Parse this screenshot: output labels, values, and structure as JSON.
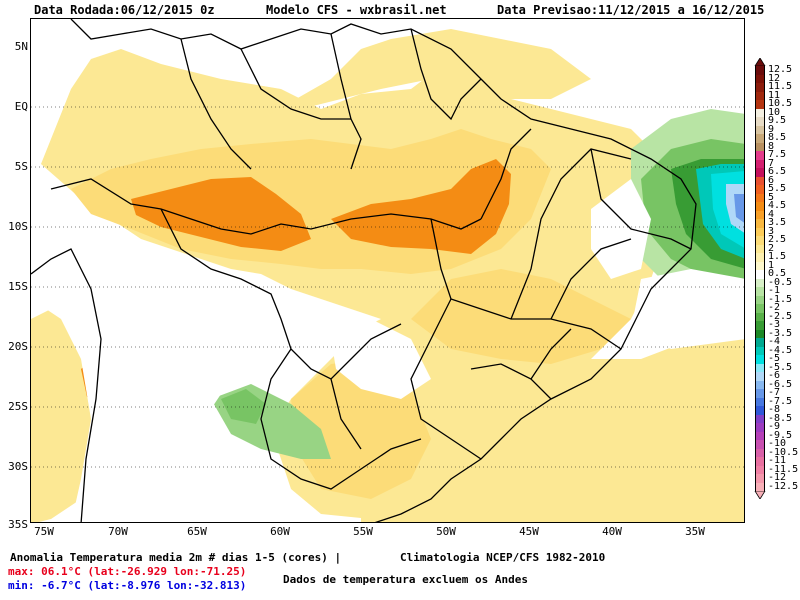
{
  "header": {
    "run_date": "Data Rodada:06/12/2015 0z",
    "model": "Modelo CFS - wxbrasil.net",
    "forecast_date": "Data Previsao:11/12/2015 a 16/12/2015"
  },
  "axes": {
    "lat_ticks": [
      "5N",
      "EQ",
      "5S",
      "10S",
      "15S",
      "20S",
      "25S",
      "30S",
      "35S"
    ],
    "lon_ticks": [
      "75W",
      "70W",
      "65W",
      "60W",
      "55W",
      "50W",
      "45W",
      "40W",
      "35W"
    ]
  },
  "footer": {
    "title": "Anomalia Temperatura media 2m # dias 1-5 (cores) |",
    "climatology": "Climatologia NCEP/CFS 1982-2010",
    "max_text": "max: 06.1°C (lat:-26.929 lon:-71.25)",
    "min_text": "min: -6.7°C (lat:-8.976 lon:-32.813)",
    "note": "Dados de temperatura excluem os Andes",
    "max_color": "#e8001c",
    "min_color": "#0000e0"
  },
  "legend": {
    "labels": [
      "12.5",
      "12",
      "11.5",
      "11",
      "10.5",
      "10",
      "9.5",
      "9",
      "8.5",
      "8",
      "7.5",
      "7",
      "6.5",
      "6",
      "5.5",
      "5",
      "4.5",
      "4",
      "3.5",
      "3",
      "2.5",
      "2",
      "1.5",
      "1",
      "0.5",
      "-0.5",
      "-1",
      "-1.5",
      "-2",
      "-2.5",
      "-3",
      "-3.5",
      "-4",
      "-4.5",
      "-5",
      "-5.5",
      "-6",
      "-6.5",
      "-7",
      "-7.5",
      "-8",
      "-8.5",
      "-9",
      "-9.5",
      "-10",
      "-10.5",
      "-11",
      "-11.5",
      "-12",
      "-12.5"
    ],
    "colors": [
      "#6b0c0c",
      "#7d1208",
      "#8c1c0c",
      "#a0280e",
      "#b43410",
      "#f4f0e2",
      "#e8dcc6",
      "#d8c4a0",
      "#c8a878",
      "#b89060",
      "#e43c8c",
      "#d42070",
      "#c4105c",
      "#e85030",
      "#f06020",
      "#f47818",
      "#f48c14",
      "#f8a028",
      "#f8b840",
      "#fccc58",
      "#fcdc78",
      "#fce894",
      "#fdf0b0",
      "#fef8cc",
      "#ffffff",
      "#d8f0c8",
      "#b8e4a4",
      "#98d484",
      "#78c464",
      "#58b048",
      "#389c34",
      "#1c8826",
      "#00a890",
      "#00c8b8",
      "#00e0e0",
      "#88e8f8",
      "#b0d8f8",
      "#88b8f0",
      "#6898e8",
      "#4878e0",
      "#3058d8",
      "#8040c8",
      "#9c3cc0",
      "#b440b8",
      "#c850b0",
      "#d860a8",
      "#e870a0",
      "#f080a4",
      "#f498ac",
      "#f8b0b8"
    ]
  }
}
